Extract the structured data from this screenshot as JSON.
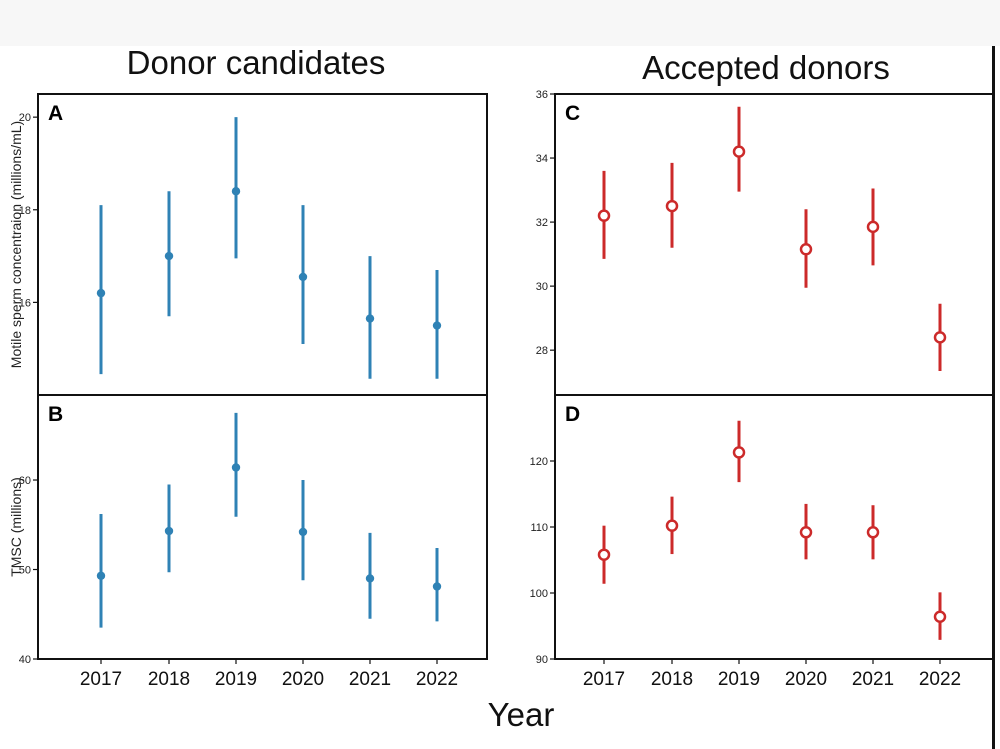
{
  "figure": {
    "left_title": "Donor candidates",
    "right_title": "Accepted donors",
    "xlabel": "Year"
  },
  "chart_data": [
    {
      "panel": "A",
      "type": "scatter",
      "error_bars": true,
      "x": [
        "2017",
        "2018",
        "2019",
        "2020",
        "2021",
        "2022"
      ],
      "y": [
        16.2,
        17.0,
        18.4,
        16.55,
        15.65,
        15.5
      ],
      "y_low": [
        14.45,
        15.7,
        16.95,
        15.1,
        14.35,
        14.35
      ],
      "y_high": [
        18.1,
        18.4,
        20.0,
        18.1,
        17.0,
        16.7
      ],
      "ylabel": "Motile sperm concentraion (millions/mL)",
      "yticks": [
        16,
        18,
        20
      ],
      "ylim": [
        14.0,
        20.5
      ],
      "color": "#2f82b5",
      "marker": "filled",
      "grid": false
    },
    {
      "panel": "B",
      "type": "scatter",
      "error_bars": true,
      "x": [
        "2017",
        "2018",
        "2019",
        "2020",
        "2021",
        "2022"
      ],
      "y": [
        49.3,
        54.3,
        61.4,
        54.2,
        49.0,
        48.1
      ],
      "y_low": [
        43.5,
        49.7,
        55.9,
        48.8,
        44.5,
        44.2
      ],
      "y_high": [
        56.2,
        59.5,
        67.5,
        60.0,
        54.1,
        52.4
      ],
      "ylabel": "TMSC (millions)",
      "yticks": [
        40,
        50,
        60
      ],
      "ylim": [
        40,
        69.5
      ],
      "color": "#2f82b5",
      "marker": "filled",
      "grid": false
    },
    {
      "panel": "C",
      "type": "scatter",
      "error_bars": true,
      "x": [
        "2017",
        "2018",
        "2019",
        "2020",
        "2021",
        "2022"
      ],
      "y": [
        32.2,
        32.5,
        34.2,
        31.15,
        31.85,
        28.4
      ],
      "y_low": [
        30.85,
        31.2,
        32.95,
        29.95,
        30.65,
        27.35
      ],
      "y_high": [
        33.6,
        33.85,
        35.6,
        32.4,
        33.05,
        29.45
      ],
      "ylabel": "",
      "yticks": [
        28,
        30,
        32,
        34,
        36
      ],
      "ylim": [
        26.6,
        36.0
      ],
      "color": "#cc2a2a",
      "marker": "open",
      "grid": false
    },
    {
      "panel": "D",
      "type": "scatter",
      "error_bars": true,
      "x": [
        "2017",
        "2018",
        "2019",
        "2020",
        "2021",
        "2022"
      ],
      "y": [
        105.8,
        110.2,
        121.3,
        109.2,
        109.2,
        96.4
      ],
      "y_low": [
        101.4,
        105.9,
        116.8,
        105.1,
        105.1,
        92.9
      ],
      "y_high": [
        110.2,
        114.6,
        126.1,
        113.5,
        113.3,
        100.1
      ],
      "ylabel": "",
      "yticks": [
        90,
        100,
        110,
        120
      ],
      "ylim": [
        90,
        130
      ],
      "color": "#cc2a2a",
      "marker": "open",
      "grid": false
    }
  ]
}
